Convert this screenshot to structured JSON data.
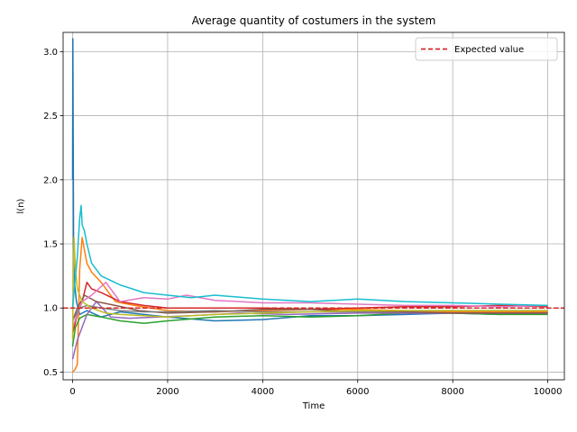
{
  "chart_data": {
    "type": "line",
    "title": "Average quantity of costumers in the system",
    "xlabel": "Time",
    "ylabel": "l(n)",
    "xlim": [
      -200,
      10350
    ],
    "ylim": [
      0.44,
      3.15
    ],
    "xticks": [
      0,
      2000,
      4000,
      6000,
      8000,
      10000
    ],
    "yticks": [
      0.5,
      1.0,
      1.5,
      2.0,
      2.5,
      3.0
    ],
    "xtick_labels": [
      "0",
      "2000",
      "4000",
      "6000",
      "8000",
      "10000"
    ],
    "ytick_labels": [
      "0.5",
      "1.0",
      "1.5",
      "2.0",
      "2.5",
      "3.0"
    ],
    "grid": true,
    "legend_position": "top-right",
    "reference_line": {
      "name": "Expected value",
      "y": 1.0,
      "color": "#d62728",
      "style": "dashed"
    },
    "series": [
      {
        "color": "#1f77b4",
        "x": [
          0,
          5,
          20,
          40,
          80,
          150,
          300,
          600,
          1000,
          1500,
          2000,
          3000,
          4000,
          5000,
          6000,
          7000,
          8000,
          9000,
          10000
        ],
        "y": [
          2.0,
          3.1,
          1.5,
          1.2,
          1.05,
          0.95,
          0.98,
          0.93,
          0.97,
          0.95,
          0.93,
          0.9,
          0.91,
          0.94,
          0.94,
          0.95,
          0.96,
          0.95,
          0.96
        ]
      },
      {
        "color": "#ff7f0e",
        "x": [
          0,
          50,
          100,
          150,
          200,
          250,
          300,
          400,
          600,
          900,
          1300,
          2000,
          3000,
          4000,
          5000,
          6000,
          7000,
          8000,
          9000,
          10000
        ],
        "y": [
          0.5,
          0.52,
          0.56,
          1.3,
          1.55,
          1.45,
          1.35,
          1.28,
          1.2,
          1.05,
          1.02,
          0.98,
          0.97,
          0.98,
          0.99,
          0.99,
          0.98,
          0.97,
          0.97,
          0.97
        ]
      },
      {
        "color": "#2ca02c",
        "x": [
          0,
          60,
          150,
          300,
          600,
          1000,
          1500,
          2000,
          3000,
          4000,
          5000,
          6000,
          7000,
          8000,
          9000,
          10000
        ],
        "y": [
          0.7,
          0.85,
          0.92,
          0.95,
          0.93,
          0.9,
          0.88,
          0.9,
          0.93,
          0.94,
          0.93,
          0.94,
          0.96,
          0.96,
          0.95,
          0.95
        ]
      },
      {
        "color": "#d62728",
        "x": [
          0,
          100,
          200,
          300,
          400,
          600,
          1000,
          1500,
          2000,
          3000,
          4000,
          5000,
          6000,
          7000,
          8000,
          9000,
          10000
        ],
        "y": [
          0.8,
          0.95,
          1.05,
          1.2,
          1.15,
          1.12,
          1.05,
          1.02,
          1.0,
          1.0,
          1.0,
          0.99,
          1.0,
          1.01,
          1.01,
          1.02,
          1.01
        ]
      },
      {
        "color": "#9467bd",
        "x": [
          0,
          100,
          200,
          300,
          500,
          800,
          1200,
          1800,
          2500,
          3500,
          4500,
          6000,
          8000,
          10000
        ],
        "y": [
          0.6,
          0.75,
          0.85,
          0.95,
          1.05,
          0.93,
          0.92,
          0.93,
          0.94,
          0.96,
          0.95,
          0.96,
          0.96,
          0.96
        ]
      },
      {
        "color": "#8c564b",
        "x": [
          0,
          100,
          250,
          500,
          900,
          1400,
          2000,
          3000,
          4000,
          5000,
          6000,
          7000,
          8000,
          9000,
          10000
        ],
        "y": [
          0.9,
          1.0,
          1.1,
          1.05,
          1.02,
          0.98,
          0.96,
          0.97,
          0.99,
          0.99,
          0.97,
          0.97,
          0.96,
          0.96,
          0.96
        ]
      },
      {
        "color": "#e377c2",
        "x": [
          0,
          100,
          200,
          400,
          700,
          1000,
          1500,
          2000,
          2400,
          3000,
          4000,
          5000,
          6000,
          7000,
          8000,
          9000,
          10000
        ],
        "y": [
          0.85,
          0.95,
          1.05,
          1.1,
          1.2,
          1.05,
          1.08,
          1.07,
          1.1,
          1.06,
          1.04,
          1.04,
          1.03,
          1.02,
          1.02,
          1.01,
          1.02
        ]
      },
      {
        "color": "#7f7f7f",
        "x": [
          0,
          150,
          300,
          600,
          1000,
          1500,
          2000,
          3000,
          4000,
          5000,
          6000,
          7000,
          8000,
          9000,
          10000
        ],
        "y": [
          0.9,
          1.0,
          1.02,
          1.0,
          0.98,
          0.97,
          0.97,
          0.98,
          0.97,
          0.97,
          0.97,
          0.98,
          0.98,
          0.98,
          0.98
        ]
      },
      {
        "color": "#bcbd22",
        "x": [
          0,
          30,
          60,
          100,
          200,
          400,
          700,
          1000,
          1500,
          2000,
          3000,
          4000,
          5000,
          6000,
          7000,
          8000,
          9000,
          10000
        ],
        "y": [
          0.75,
          1.55,
          1.3,
          1.15,
          1.05,
          1.0,
          0.96,
          0.95,
          0.94,
          0.93,
          0.95,
          0.96,
          0.97,
          0.98,
          0.98,
          0.98,
          0.98,
          0.98
        ]
      },
      {
        "color": "#17becf",
        "x": [
          0,
          100,
          150,
          180,
          200,
          250,
          300,
          400,
          600,
          1000,
          1500,
          2000,
          2500,
          3000,
          4000,
          5000,
          6000,
          7000,
          8000,
          9000,
          10000
        ],
        "y": [
          1.0,
          1.4,
          1.7,
          1.8,
          1.65,
          1.6,
          1.5,
          1.35,
          1.25,
          1.18,
          1.12,
          1.1,
          1.08,
          1.1,
          1.07,
          1.05,
          1.07,
          1.05,
          1.04,
          1.03,
          1.02
        ]
      }
    ]
  }
}
